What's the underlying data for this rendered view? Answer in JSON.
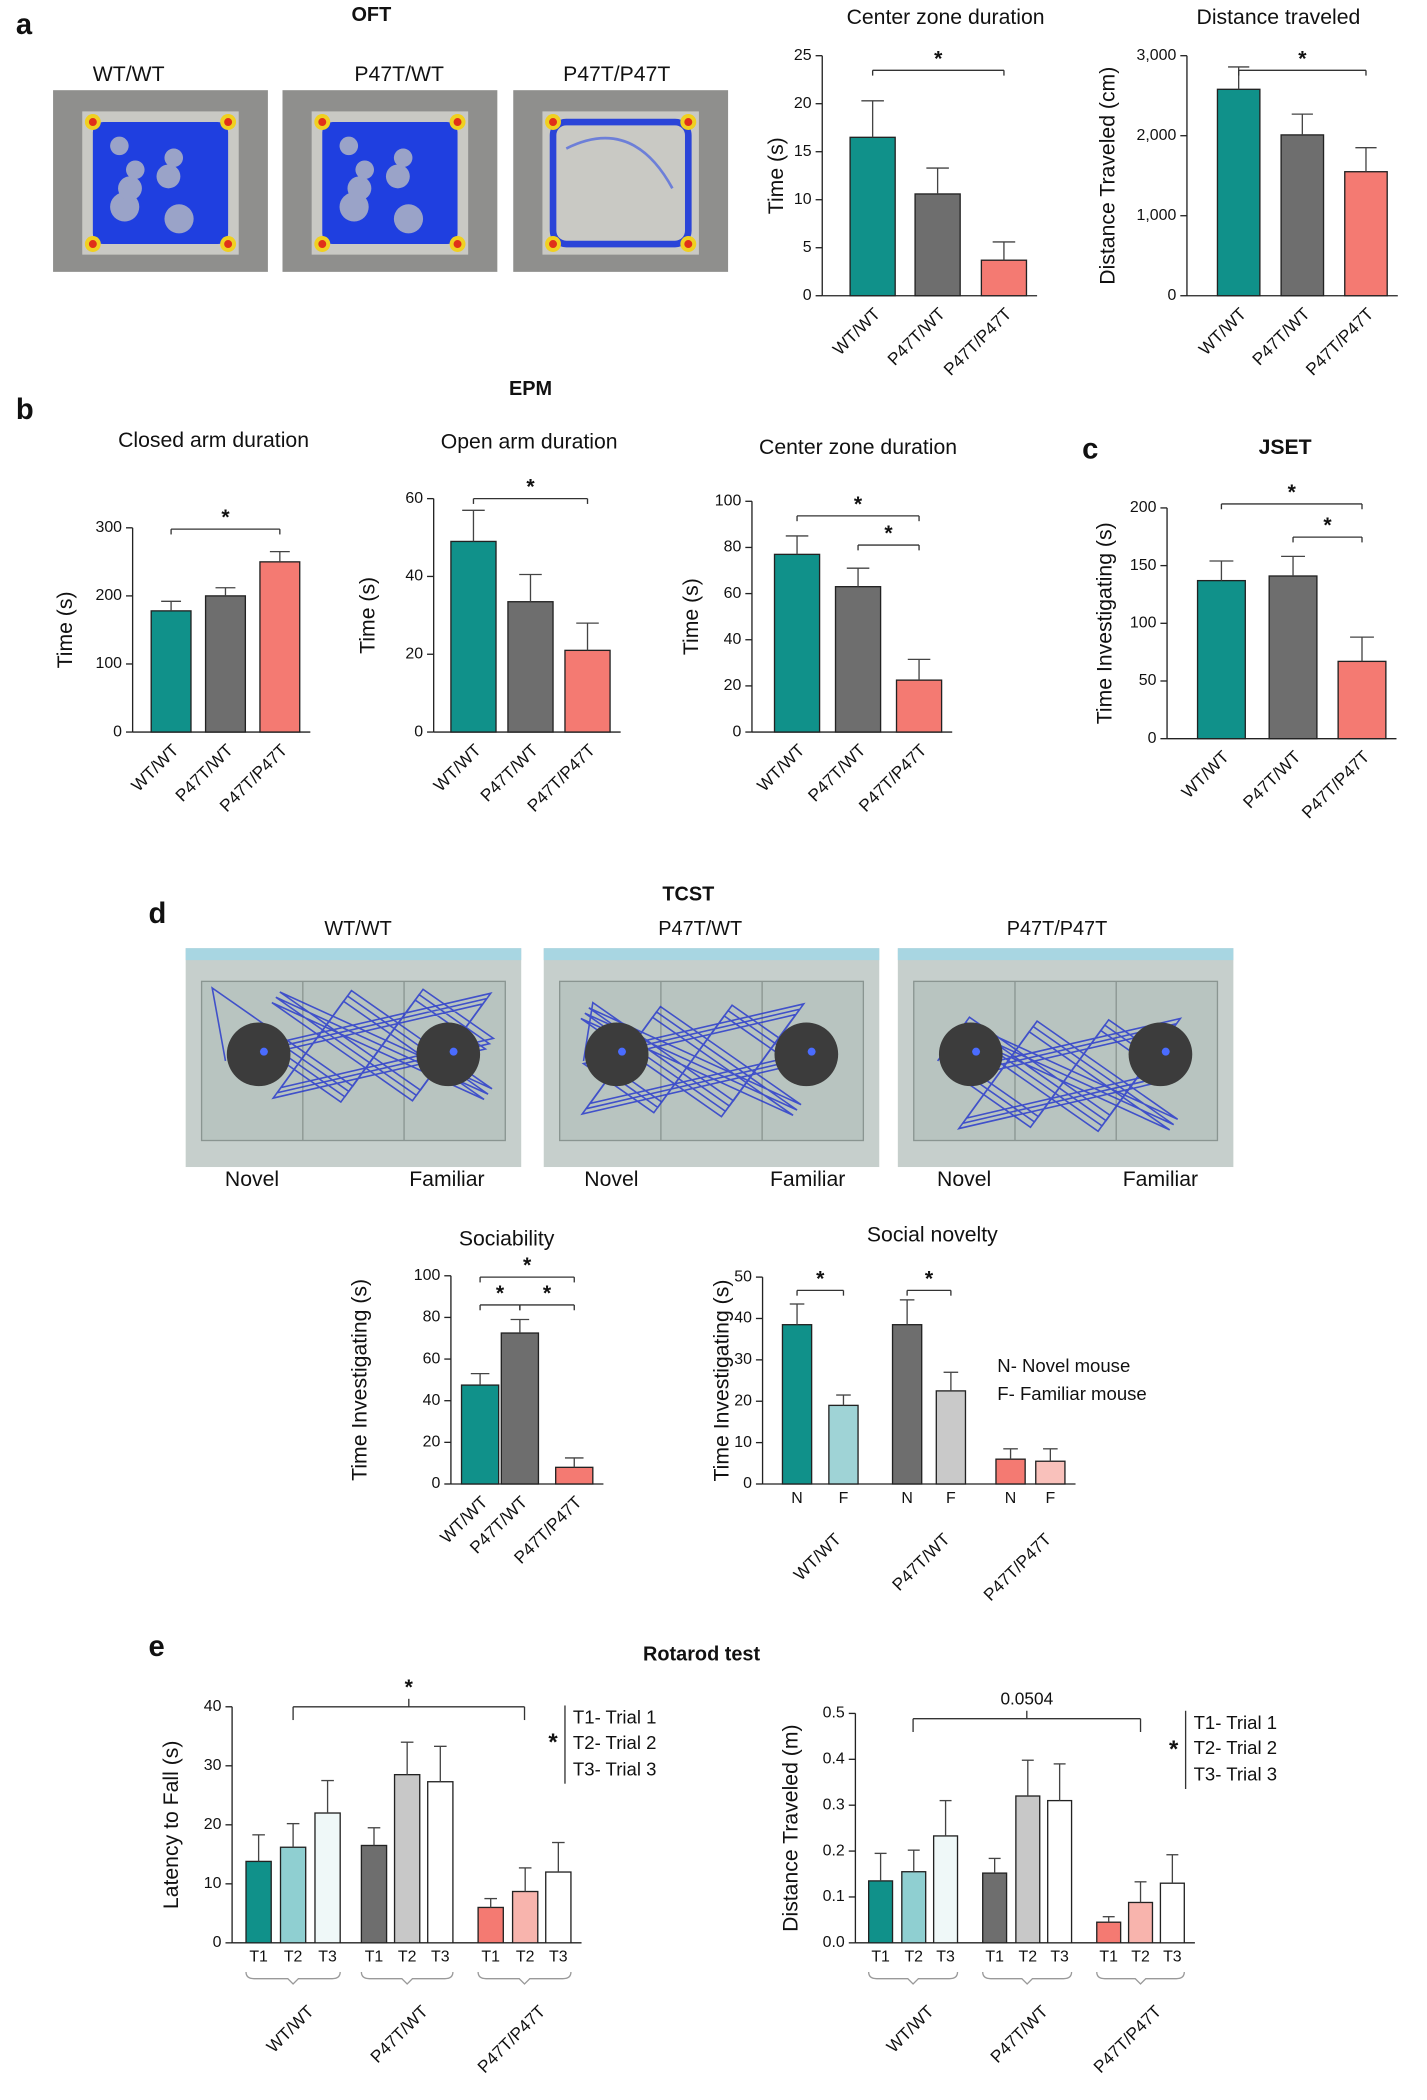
{
  "figure": {
    "panels": [
      "a",
      "b",
      "c",
      "d",
      "e"
    ],
    "sections": [
      "OFT",
      "EPM",
      "TCST",
      "Rotarod test"
    ],
    "oft_images": [
      "WT/WT",
      "P47T/WT",
      "P47T/P47T"
    ],
    "tcst_images": [
      {
        "genotype": "WT/WT",
        "left": "Novel",
        "right": "Familiar"
      },
      {
        "genotype": "P47T/WT",
        "left": "Novel",
        "right": "Familiar"
      },
      {
        "genotype": "P47T/P47T",
        "left": "Novel",
        "right": "Familiar"
      }
    ]
  },
  "chart_data": [
    {
      "type": "bar",
      "title": "Center zone duration",
      "ylabel": "Time (s)",
      "categories": [
        "WT/WT",
        "P47T/WT",
        "P47T/P47T"
      ],
      "values": [
        16.5,
        10.6,
        3.7
      ],
      "errors": [
        3.8,
        2.7,
        1.9
      ],
      "colors": [
        "#10918a",
        "#6e6e6e",
        "#f47a72"
      ],
      "ylim": [
        0,
        25
      ],
      "yticks": [
        0,
        5,
        10,
        15,
        20,
        25
      ],
      "significance": [
        {
          "groups": [
            "WT/WT",
            "P47T/P47T"
          ],
          "label": "*"
        }
      ]
    },
    {
      "type": "bar",
      "title": "Distance traveled",
      "ylabel": "Distance Traveled (cm)",
      "categories": [
        "WT/WT",
        "P47T/WT",
        "P47T/P47T"
      ],
      "values": [
        2580,
        2010,
        1550
      ],
      "errors": [
        280,
        260,
        300
      ],
      "colors": [
        "#10918a",
        "#6e6e6e",
        "#f47a72"
      ],
      "ylim": [
        0,
        3000
      ],
      "yticks": [
        0,
        {
          "value": 1000,
          "label": "1,000"
        },
        {
          "value": 2000,
          "label": "2,000"
        },
        {
          "value": 3000,
          "label": "3,000"
        }
      ],
      "significance": [
        {
          "groups": [
            "WT/WT",
            "P47T/P47T"
          ],
          "label": "*"
        }
      ]
    },
    {
      "type": "bar",
      "title": "Closed arm duration",
      "ylabel": "Time (s)",
      "categories": [
        "WT/WT",
        "P47T/WT",
        "P47T/P47T"
      ],
      "values": [
        178,
        200,
        250
      ],
      "errors": [
        14,
        12,
        15
      ],
      "colors": [
        "#10918a",
        "#6e6e6e",
        "#f47a72"
      ],
      "ylim": [
        0,
        300
      ],
      "yticks": [
        0,
        100,
        200,
        300
      ],
      "significance": [
        {
          "groups": [
            "WT/WT",
            "P47T/P47T"
          ],
          "label": "*"
        }
      ]
    },
    {
      "type": "bar",
      "title": "Open arm duration",
      "ylabel": "Time (s)",
      "categories": [
        "WT/WT",
        "P47T/WT",
        "P47T/P47T"
      ],
      "values": [
        49,
        33.5,
        21
      ],
      "errors": [
        8,
        7,
        7
      ],
      "colors": [
        "#10918a",
        "#6e6e6e",
        "#f47a72"
      ],
      "ylim": [
        0,
        60
      ],
      "yticks": [
        0,
        20,
        40,
        60
      ],
      "significance": [
        {
          "groups": [
            "WT/WT",
            "P47T/P47T"
          ],
          "label": "*"
        }
      ]
    },
    {
      "type": "bar",
      "title": "Center zone duration",
      "ylabel": "Time (s)",
      "categories": [
        "WT/WT",
        "P47T/WT",
        "P47T/P47T"
      ],
      "values": [
        77,
        63,
        22.5
      ],
      "errors": [
        8,
        8,
        9
      ],
      "colors": [
        "#10918a",
        "#6e6e6e",
        "#f47a72"
      ],
      "ylim": [
        0,
        100
      ],
      "yticks": [
        0,
        20,
        40,
        60,
        80,
        100
      ],
      "significance": [
        {
          "groups": [
            "WT/WT",
            "P47T/P47T"
          ],
          "label": "*"
        },
        {
          "groups": [
            "P47T/WT",
            "P47T/P47T"
          ],
          "label": "*"
        }
      ]
    },
    {
      "type": "bar",
      "title": "JSET",
      "ylabel": "Time Investigating (s)",
      "categories": [
        "WT/WT",
        "P47T/WT",
        "P47T/P47T"
      ],
      "values": [
        137,
        141,
        67
      ],
      "errors": [
        17,
        17,
        21
      ],
      "colors": [
        "#10918a",
        "#6e6e6e",
        "#f47a72"
      ],
      "ylim": [
        0,
        200
      ],
      "yticks": [
        0,
        50,
        100,
        150,
        200
      ],
      "significance": [
        {
          "groups": [
            "WT/WT",
            "P47T/P47T"
          ],
          "label": "*"
        },
        {
          "groups": [
            "P47T/WT",
            "P47T/P47T"
          ],
          "label": "*"
        }
      ]
    },
    {
      "type": "bar",
      "title": "Sociability",
      "ylabel": "Time Investigating (s)",
      "categories": [
        "WT/WT",
        "P47T/WT",
        "P47T/P47T"
      ],
      "values": [
        47.5,
        72.5,
        8
      ],
      "errors": [
        5.5,
        6.5,
        4.5
      ],
      "colors": [
        "#10918a",
        "#6e6e6e",
        "#f47a72"
      ],
      "ylim": [
        0,
        100
      ],
      "yticks": [
        0,
        20,
        40,
        60,
        80,
        100
      ],
      "significance": [
        {
          "groups": [
            "WT/WT",
            "P47T/P47T"
          ],
          "label": "*"
        },
        {
          "groups": [
            "WT/WT",
            "P47T/WT"
          ],
          "label": "*"
        },
        {
          "groups": [
            "P47T/WT",
            "P47T/P47T"
          ],
          "label": "*"
        }
      ]
    },
    {
      "type": "bar",
      "title": "Social novelty",
      "ylabel": "Time Investigating (s)",
      "categories": [
        "WT/WT",
        "P47T/WT",
        "P47T/P47T"
      ],
      "series": [
        {
          "name": "N",
          "values": [
            38.5,
            38.5,
            6
          ],
          "errors": [
            5,
            6,
            2.5
          ],
          "colors": [
            "#10918a",
            "#6e6e6e",
            "#f47a72"
          ]
        },
        {
          "name": "F",
          "values": [
            19,
            22.5,
            5.5
          ],
          "errors": [
            2.5,
            4.5,
            3
          ],
          "colors": [
            "#9fd3d6",
            "#c9c9c9",
            "#f9c1bb"
          ]
        }
      ],
      "ylim": [
        0,
        50
      ],
      "yticks": [
        0,
        10,
        20,
        30,
        40,
        50
      ],
      "significance": [
        {
          "groups": [
            "WT/WT"
          ],
          "series": [
            "N",
            "F"
          ],
          "label": "*"
        },
        {
          "groups": [
            "P47T/WT"
          ],
          "series": [
            "N",
            "F"
          ],
          "label": "*"
        }
      ],
      "legend_notes": [
        "N- Novel mouse",
        "F- Familiar mouse"
      ]
    },
    {
      "type": "bar",
      "ylabel": "Latency to Fall (s)",
      "categories": [
        "WT/WT",
        "P47T/WT",
        "P47T/P47T"
      ],
      "series": [
        {
          "name": "T1",
          "values": [
            13.8,
            16.5,
            6
          ],
          "errors": [
            4.5,
            3,
            1.5
          ],
          "colors": [
            "#10918a",
            "#6e6e6e",
            "#f47a72"
          ]
        },
        {
          "name": "T2",
          "values": [
            16.2,
            28.5,
            8.7
          ],
          "errors": [
            4,
            5.5,
            4
          ],
          "colors": [
            "#8fcfd1",
            "#c8c8c8",
            "#f8b4ad"
          ]
        },
        {
          "name": "T3",
          "values": [
            22,
            27.3,
            12
          ],
          "errors": [
            5.5,
            6,
            5
          ],
          "colors": [
            "#eff8f8",
            "#ffffff",
            "#ffffff"
          ]
        }
      ],
      "ylim": [
        0,
        40
      ],
      "yticks": [
        0,
        10,
        20,
        30,
        40
      ],
      "significance": [
        {
          "groups": [
            "WT/WT",
            "P47T/WT",
            "P47T/P47T"
          ],
          "label": "*"
        }
      ],
      "legend_notes": [
        "T1- Trial 1",
        "T2- Trial 2",
        "T3- Trial 3"
      ],
      "legend_annotation": "*"
    },
    {
      "type": "bar",
      "ylabel": "Distance Traveled (m)",
      "categories": [
        "WT/WT",
        "P47T/WT",
        "P47T/P47T"
      ],
      "series": [
        {
          "name": "T1",
          "values": [
            0.135,
            0.152,
            0.045
          ],
          "errors": [
            0.06,
            0.032,
            0.012
          ],
          "colors": [
            "#10918a",
            "#6e6e6e",
            "#f47a72"
          ]
        },
        {
          "name": "T2",
          "values": [
            0.155,
            0.32,
            0.088
          ],
          "errors": [
            0.047,
            0.078,
            0.045
          ],
          "colors": [
            "#8fcfd1",
            "#c8c8c8",
            "#f8b4ad"
          ]
        },
        {
          "name": "T3",
          "values": [
            0.233,
            0.31,
            0.13
          ],
          "errors": [
            0.077,
            0.08,
            0.062
          ],
          "colors": [
            "#eff8f8",
            "#ffffff",
            "#ffffff"
          ]
        }
      ],
      "ylim": [
        0,
        0.5
      ],
      "yticks": [
        {
          "value": 0,
          "label": "0.0"
        },
        0.1,
        0.2,
        0.3,
        0.4,
        0.5
      ],
      "significance": [
        {
          "groups": [
            "WT/WT",
            "P47T/WT",
            "P47T/P47T"
          ],
          "label": "0.0504"
        }
      ],
      "legend_notes": [
        "T1- Trial 1",
        "T2- Trial 2",
        "T3- Trial 3"
      ],
      "legend_annotation": "*"
    }
  ]
}
